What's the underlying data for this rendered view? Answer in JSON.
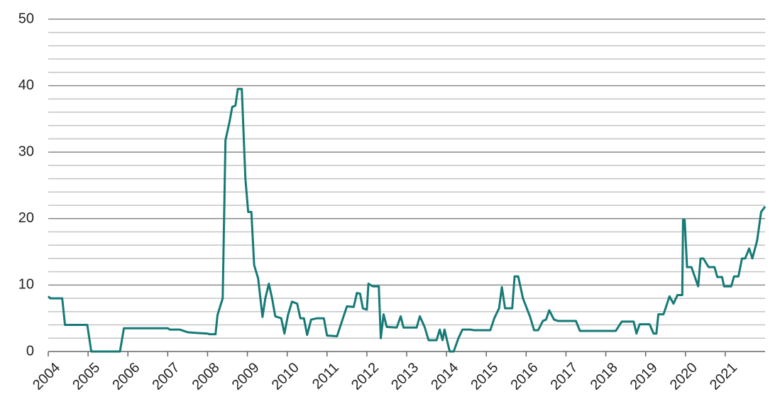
{
  "chart_data": {
    "type": "line",
    "x": [
      2004.0,
      2004.05,
      2004.35,
      2004.42,
      2004.98,
      2005.08,
      2005.8,
      2005.9,
      2007.0,
      2007.05,
      2007.3,
      2007.5,
      2007.7,
      2008.0,
      2008.05,
      2008.2,
      2008.25,
      2008.38,
      2008.45,
      2008.55,
      2008.62,
      2008.7,
      2008.76,
      2008.86,
      2008.95,
      2009.02,
      2009.1,
      2009.17,
      2009.27,
      2009.38,
      2009.45,
      2009.54,
      2009.62,
      2009.7,
      2009.85,
      2009.93,
      2010.02,
      2010.12,
      2010.25,
      2010.33,
      2010.42,
      2010.5,
      2010.6,
      2010.75,
      2010.92,
      2011.0,
      2011.25,
      2011.4,
      2011.5,
      2011.67,
      2011.75,
      2011.83,
      2011.9,
      2012.0,
      2012.04,
      2012.15,
      2012.3,
      2012.35,
      2012.42,
      2012.5,
      2012.75,
      2012.85,
      2012.92,
      2013.25,
      2013.33,
      2013.45,
      2013.55,
      2013.75,
      2013.83,
      2013.9,
      2013.95,
      2014.08,
      2014.18,
      2014.3,
      2014.4,
      2014.6,
      2014.7,
      2015.1,
      2015.2,
      2015.32,
      2015.39,
      2015.47,
      2015.65,
      2015.71,
      2015.8,
      2015.92,
      2016.1,
      2016.2,
      2016.3,
      2016.42,
      2016.5,
      2016.58,
      2016.7,
      2016.8,
      2017.25,
      2017.35,
      2018.25,
      2018.4,
      2018.7,
      2018.77,
      2018.85,
      2019.1,
      2019.2,
      2019.27,
      2019.32,
      2019.45,
      2019.6,
      2019.7,
      2019.8,
      2019.92,
      2019.94,
      2019.98,
      2020.04,
      2020.15,
      2020.32,
      2020.38,
      2020.45,
      2020.58,
      2020.73,
      2020.8,
      2020.92,
      2020.97,
      2021.15,
      2021.22,
      2021.33,
      2021.42,
      2021.5,
      2021.6,
      2021.68,
      2021.8,
      2021.9,
      2022.0
    ],
    "series": [
      {
        "color": "#167a76",
        "values": [
          8.3,
          8.0,
          8.0,
          4.0,
          4.0,
          0,
          0,
          3.5,
          3.5,
          3.3,
          3.3,
          2.9,
          2.8,
          2.7,
          2.6,
          2.6,
          5.5,
          8.0,
          31.8,
          34.5,
          36.8,
          37,
          39.5,
          39.5,
          26,
          21,
          21,
          13,
          11,
          5.2,
          8,
          10.2,
          8,
          5.3,
          5.0,
          2.7,
          5.5,
          7.5,
          7.2,
          5.0,
          5.0,
          2.5,
          4.8,
          5.0,
          5.0,
          2.4,
          2.3,
          5,
          6.8,
          6.7,
          8.8,
          8.7,
          6.5,
          6.3,
          10.2,
          9.8,
          9.8,
          2.0,
          5.6,
          3.7,
          3.6,
          5.3,
          3.6,
          3.6,
          5.3,
          3.7,
          1.7,
          1.7,
          3.3,
          1.7,
          3.3,
          0,
          0,
          2.0,
          3.3,
          3.3,
          3.2,
          3.2,
          5,
          6.5,
          9.7,
          6.5,
          6.5,
          11.3,
          11.3,
          8,
          5.2,
          3.2,
          3.2,
          4.6,
          4.8,
          6.2,
          4.8,
          4.6,
          4.6,
          3.1,
          3.1,
          4.5,
          4.5,
          2.7,
          4.1,
          4.1,
          2.7,
          2.7,
          5.6,
          5.6,
          8.3,
          7.2,
          8.5,
          8.5,
          19.8,
          19.8,
          12.7,
          12.7,
          9.8,
          14,
          14,
          12.7,
          12.7,
          11.2,
          11.2,
          9.8,
          9.8,
          11.3,
          11.3,
          14,
          14,
          15.5,
          14,
          16.7,
          21,
          21.8
        ]
      }
    ],
    "xlim": [
      2004,
      2022
    ],
    "xticks": [
      2004,
      2005,
      2006,
      2007,
      2008,
      2009,
      2010,
      2011,
      2012,
      2013,
      2014,
      2015,
      2016,
      2017,
      2018,
      2019,
      2020,
      2021
    ],
    "ylim": [
      0,
      50
    ],
    "yticks": [
      0,
      10,
      20,
      30,
      40,
      50
    ],
    "minor_yticks": [
      2,
      4,
      6,
      8,
      12,
      14,
      16,
      18,
      22,
      24,
      26,
      28,
      32,
      34,
      36,
      38,
      42,
      44,
      46,
      48
    ],
    "grid": true
  }
}
